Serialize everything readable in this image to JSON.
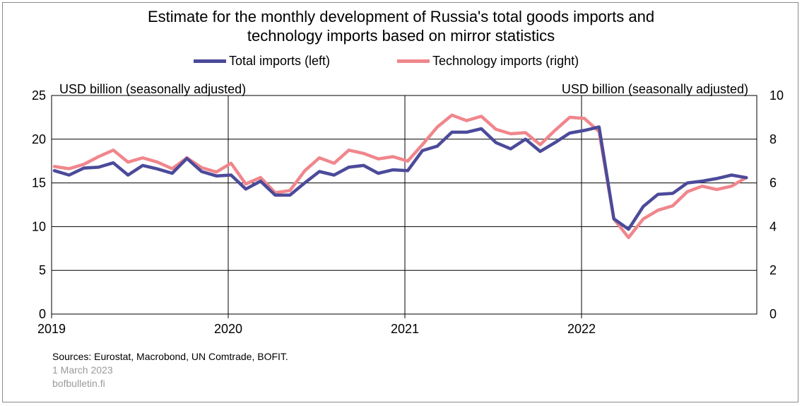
{
  "title_line1": "Estimate for the monthly development of Russia's total goods imports and",
  "title_line2": "technology imports based on mirror statistics",
  "chart_data": {
    "type": "line",
    "title": "Estimate for the monthly development of Russia's total goods imports and technology imports based on mirror statistics",
    "left_axis_label": "USD billion  (seasonally adjusted)",
    "right_axis_label": "USD billion  (seasonally adjusted)",
    "x_tick_labels": [
      "2019",
      "2020",
      "2021",
      "2022"
    ],
    "x_start": "2019-01",
    "left_ylim": [
      0,
      25
    ],
    "left_ticks": [
      0,
      5,
      10,
      15,
      20,
      25
    ],
    "right_ylim": [
      0,
      10
    ],
    "right_ticks": [
      0,
      2,
      4,
      6,
      8,
      10
    ],
    "grid": true,
    "legend_position": "top-center",
    "series": [
      {
        "name": "Total imports (left)",
        "axis": "left",
        "color": "#4b4a9a",
        "values": [
          16.4,
          15.9,
          16.7,
          16.8,
          17.3,
          15.9,
          17.0,
          16.6,
          16.1,
          17.8,
          16.3,
          15.8,
          15.9,
          14.3,
          15.2,
          13.6,
          13.6,
          15.0,
          16.3,
          15.9,
          16.8,
          17.0,
          16.1,
          16.5,
          16.4,
          18.7,
          19.2,
          20.8,
          20.8,
          21.2,
          19.6,
          18.9,
          20.0,
          18.6,
          19.6,
          20.7,
          21.0,
          21.4,
          10.9,
          9.7,
          12.3,
          13.7,
          13.8,
          15.0,
          15.2,
          15.5,
          15.9,
          15.6
        ]
      },
      {
        "name": "Technology imports (right)",
        "axis": "right",
        "color": "#f0868c",
        "values": [
          6.75,
          6.65,
          6.85,
          7.2,
          7.5,
          6.95,
          7.15,
          6.95,
          6.65,
          7.15,
          6.7,
          6.5,
          6.9,
          5.95,
          6.25,
          5.55,
          5.65,
          6.55,
          7.15,
          6.9,
          7.5,
          7.35,
          7.1,
          7.2,
          7.0,
          7.75,
          8.55,
          9.1,
          8.85,
          9.05,
          8.45,
          8.25,
          8.3,
          7.75,
          8.4,
          9.0,
          8.95,
          8.35,
          4.35,
          3.5,
          4.35,
          4.75,
          4.95,
          5.6,
          5.85,
          5.7,
          5.85,
          6.25
        ]
      }
    ]
  },
  "sources": "Sources: Eurostat, Macrobond, UN Comtrade, BOFIT.",
  "date": "1 March 2023",
  "site": "bofbulletin.fi"
}
